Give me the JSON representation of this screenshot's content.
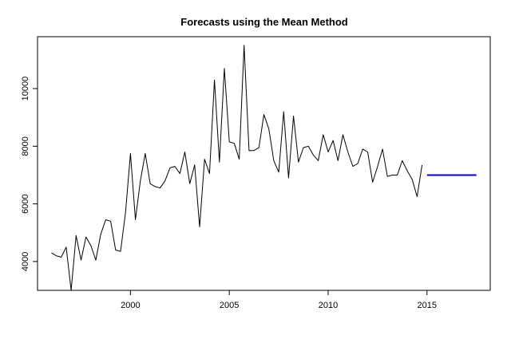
{
  "chart_data": {
    "type": "line",
    "title": "Forecasts using the Mean Method",
    "xlabel": "",
    "ylabel": "",
    "xlim": [
      1995.3,
      2018.2
    ],
    "ylim": [
      3000,
      11800
    ],
    "x_ticks": [
      2000,
      2005,
      2010,
      2015
    ],
    "x_tick_labels": [
      "2000",
      "2005",
      "2010",
      "2015"
    ],
    "y_ticks": [
      4000,
      6000,
      8000,
      10000
    ],
    "y_tick_labels": [
      "4000",
      "6000",
      "8000",
      "10000"
    ],
    "grid": false,
    "series": [
      {
        "name": "observed",
        "color": "#000000",
        "start": 1996.0,
        "frequency": 4,
        "values": [
          4300,
          4200,
          4150,
          4500,
          3000,
          4900,
          4050,
          4850,
          4550,
          4050,
          4950,
          5450,
          5400,
          4400,
          4350,
          5700,
          7750,
          5450,
          6800,
          7750,
          6700,
          6600,
          6550,
          6800,
          7250,
          7300,
          7050,
          7800,
          6700,
          7350,
          5200,
          7550,
          7050,
          10300,
          7450,
          10700,
          8150,
          8100,
          7550,
          11500,
          7850,
          7850,
          7950,
          9100,
          8600,
          7500,
          7100,
          9200,
          6900,
          9050,
          7450,
          7950,
          8000,
          7700,
          7500,
          8400,
          7800,
          8200,
          7500,
          8400,
          7800,
          7300,
          7400,
          7900,
          7800,
          6750,
          7300,
          7900,
          6950,
          7000,
          7000,
          7500,
          7150,
          6850,
          6250,
          7350
        ]
      },
      {
        "name": "mean forecast",
        "color": "#0000cc",
        "x": [
          2015.0,
          2017.5
        ],
        "values": [
          7000,
          7000
        ]
      }
    ]
  }
}
